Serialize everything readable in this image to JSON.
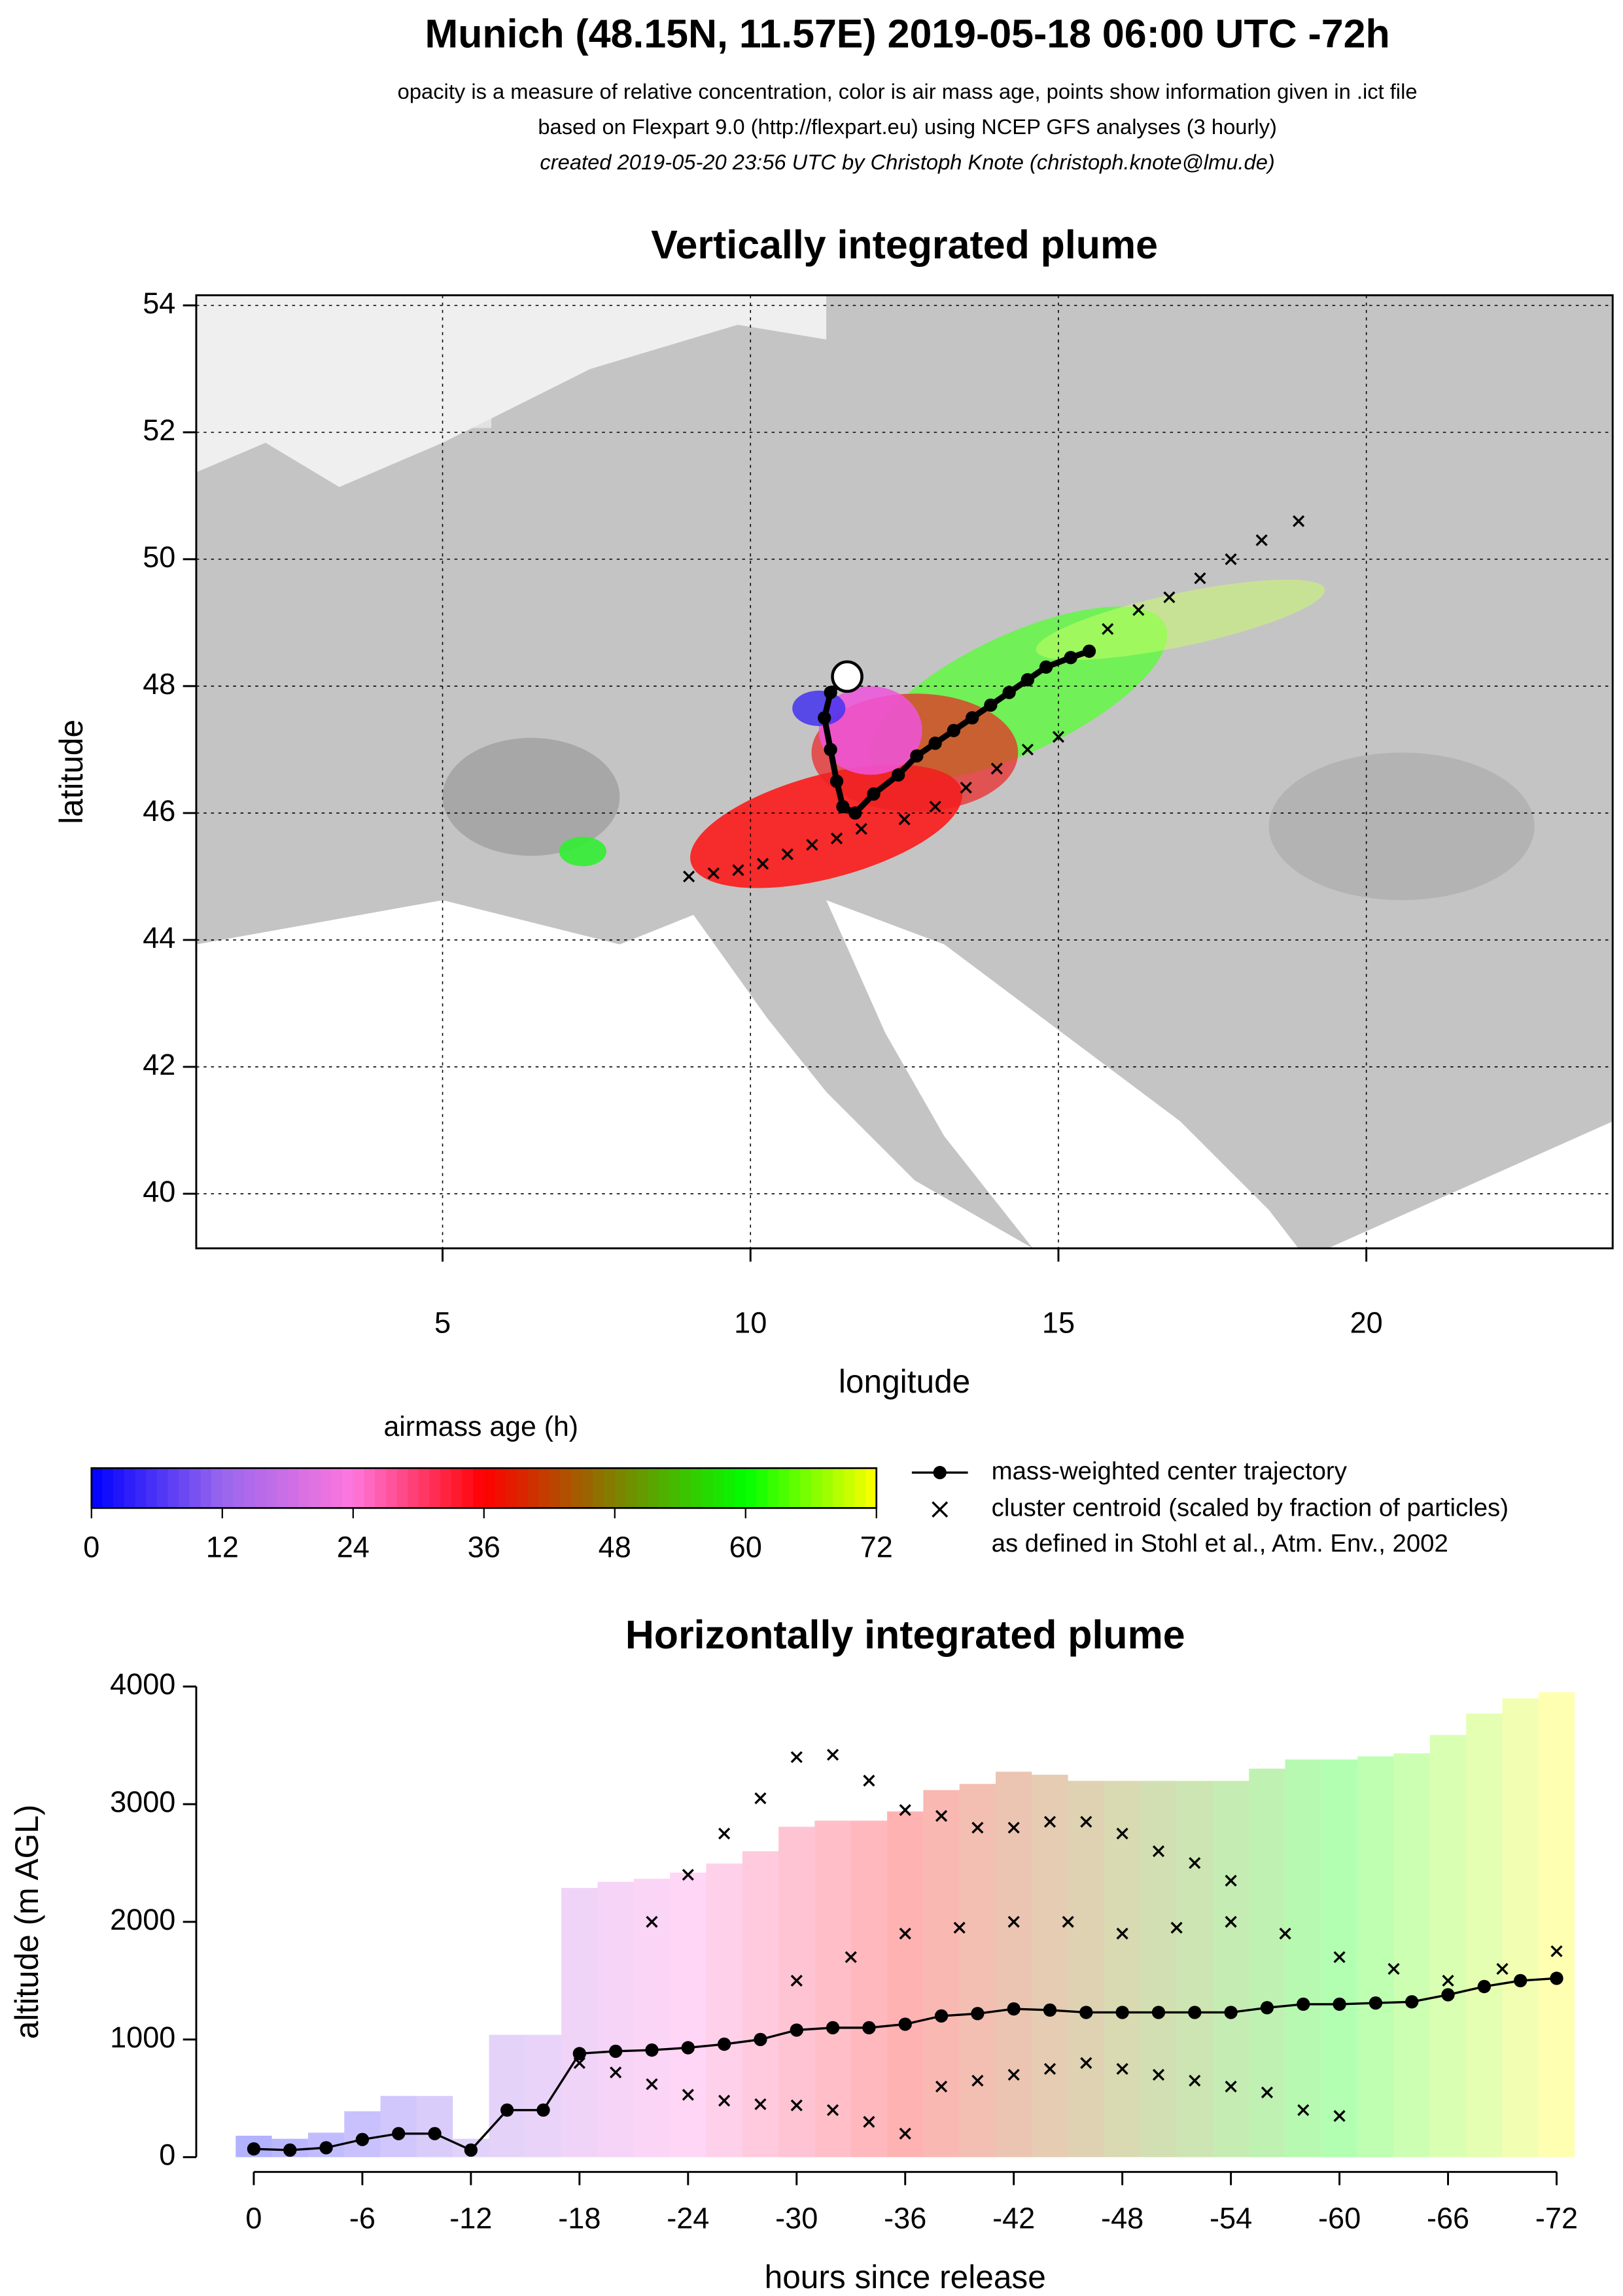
{
  "header": {
    "title": "Munich (48.15N, 11.57E) 2019-05-18 06:00 UTC -72h",
    "lines": [
      "opacity is a measure of relative concentration, color is air mass age, points show information given in .ict file",
      "based on Flexpart 9.0 (http://flexpart.eu) using NCEP GFS analyses (3 hourly)",
      "created 2019-05-20 23:56 UTC by Christoph Knote (christoph.knote@lmu.de)"
    ]
  },
  "colorbar": {
    "title": "airmass age (h)",
    "lim": [
      0,
      72
    ],
    "ticks": [
      0,
      12,
      24,
      36,
      48,
      60,
      72
    ],
    "colors": [
      "#0000ff",
      "#9966ee",
      "#ff77dd",
      "#ff0000",
      "#808000",
      "#00ff00",
      "#ffff00"
    ]
  },
  "legend": {
    "entries": [
      "mass-weighted center trajectory",
      "cluster centroid (scaled by fraction of particles)",
      "as defined in Stohl et al., Atm. Env., 2002"
    ]
  },
  "chart_data": [
    {
      "type": "map",
      "title": "Vertically integrated plume",
      "x_label": "longitude",
      "y_label": "latitude",
      "xlim": [
        1,
        24
      ],
      "ylim": [
        39.14,
        54.16
      ],
      "xticks": [
        5,
        10,
        15,
        20
      ],
      "yticks": [
        40,
        42,
        44,
        46,
        48,
        50,
        52,
        54
      ],
      "grid": true,
      "box": true,
      "series": [
        {
          "name": "mass-weighted center trajectory",
          "color": "#000000",
          "marker": "o",
          "line": true,
          "x": [
            11.57,
            11.3,
            11.2,
            11.3,
            11.4,
            11.5,
            11.7,
            12.0,
            12.4,
            12.7,
            13.0,
            13.3,
            13.6,
            13.9,
            14.2,
            14.5,
            14.8,
            15.2,
            15.5
          ],
          "values": [
            48.15,
            47.9,
            47.5,
            47.0,
            46.5,
            46.1,
            46.0,
            46.3,
            46.6,
            46.9,
            47.1,
            47.3,
            47.5,
            47.7,
            47.9,
            48.1,
            48.3,
            48.45,
            48.55
          ]
        },
        {
          "color": "#000000",
          "marker": "x",
          "line": false,
          "x": [
            15.8,
            16.3,
            16.8,
            17.3,
            17.8,
            18.3,
            18.9
          ],
          "values": [
            48.9,
            49.2,
            49.4,
            49.7,
            50.0,
            50.3,
            50.6
          ]
        },
        {
          "color": "#000000",
          "marker": "x",
          "line": false,
          "x": [
            9.0,
            9.4,
            9.8,
            10.2,
            10.6,
            11.0,
            11.4,
            11.8
          ],
          "values": [
            45.0,
            45.05,
            45.1,
            45.2,
            45.35,
            45.5,
            45.6,
            45.75
          ]
        },
        {
          "color": "#000000",
          "marker": "x",
          "line": false,
          "x": [
            12.5,
            13.0,
            13.5,
            14.0,
            14.5,
            15.0
          ],
          "values": [
            45.9,
            46.1,
            46.4,
            46.7,
            47.0,
            47.2
          ]
        }
      ]
    },
    {
      "type": "line",
      "title": "Horizontally integrated plume",
      "x_label": "hours since release",
      "y_label": "altitude (m AGL)",
      "xlim": [
        0,
        -72
      ],
      "ylim": [
        0,
        4000
      ],
      "xticks": [
        0,
        -6,
        -12,
        -18,
        -24,
        -30,
        -36,
        -42,
        -48,
        -54,
        -60,
        -66,
        -72
      ],
      "yticks": [
        0,
        1000,
        2000,
        3000,
        4000
      ],
      "grid": false,
      "box": false,
      "series": [
        {
          "name": "mass-weighted center trajectory",
          "color": "#000000",
          "marker": "o",
          "line": true,
          "x": [
            0,
            -2,
            -4,
            -6,
            -8,
            -10,
            -12,
            -14,
            -16,
            -18,
            -20,
            -22,
            -24,
            -26,
            -28,
            -30,
            -32,
            -34,
            -36,
            -38,
            -40,
            -42,
            -44,
            -46,
            -48,
            -50,
            -52,
            -54,
            -56,
            -58,
            -60,
            -62,
            -64,
            -66,
            -68,
            -70,
            -72
          ],
          "values": [
            70,
            60,
            80,
            150,
            200,
            200,
            60,
            400,
            400,
            880,
            900,
            910,
            930,
            960,
            1000,
            1080,
            1100,
            1100,
            1130,
            1200,
            1220,
            1260,
            1250,
            1230,
            1230,
            1230,
            1230,
            1230,
            1270,
            1300,
            1300,
            1310,
            1320,
            1380,
            1450,
            1500,
            1520
          ]
        },
        {
          "color": "#000000",
          "marker": "x",
          "line": false,
          "x": [
            -22,
            -24,
            -26,
            -28,
            -30,
            -32,
            -34,
            -36,
            -38,
            -40,
            -42,
            -44,
            -46,
            -48,
            -50,
            -52,
            -54
          ],
          "values": [
            2000,
            2400,
            2750,
            3050,
            3400,
            3420,
            3200,
            2950,
            2900,
            2800,
            2800,
            2850,
            2850,
            2750,
            2600,
            2500,
            2350
          ]
        },
        {
          "color": "#000000",
          "marker": "x",
          "line": false,
          "x": [
            -18,
            -20,
            -22,
            -24,
            -26,
            -28,
            -30,
            -32,
            -34,
            -36,
            -38,
            -40,
            -42,
            -44,
            -46,
            -48,
            -50,
            -52,
            -54,
            -56,
            -58,
            -60
          ],
          "values": [
            800,
            720,
            620,
            530,
            480,
            450,
            440,
            400,
            300,
            200,
            600,
            650,
            700,
            750,
            800,
            750,
            700,
            650,
            600,
            550,
            400,
            350
          ]
        },
        {
          "color": "#000000",
          "marker": "x",
          "line": false,
          "x": [
            -30,
            -33,
            -36,
            -39,
            -42,
            -45,
            -48,
            -51,
            -54,
            -57,
            -60,
            -63,
            -66,
            -69,
            -72
          ],
          "values": [
            1500,
            1700,
            1900,
            1950,
            2000,
            2000,
            1900,
            1950,
            2000,
            1900,
            1700,
            1600,
            1500,
            1600,
            1750
          ]
        }
      ]
    }
  ]
}
